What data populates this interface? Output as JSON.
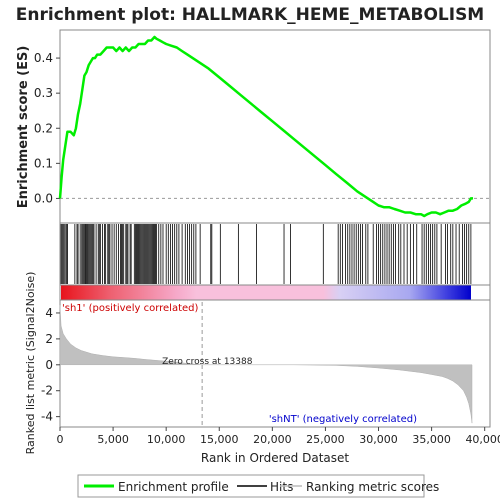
{
  "chart_data": {
    "type": "line",
    "title": "Enrichment plot: HALLMARK_HEME_METABOLISM",
    "top_panel": {
      "ylabel": "Enrichment score (ES)",
      "ylim": [
        -0.07,
        0.48
      ],
      "yticks": [
        "0.0",
        "0.1",
        "0.2",
        "0.3",
        "0.4"
      ],
      "ytick_values": [
        0.0,
        0.1,
        0.2,
        0.3,
        0.4
      ],
      "series": [
        {
          "name": "Enrichment profile",
          "color": "#00ee00",
          "x": [
            0,
            150,
            300,
            500,
            700,
            1000,
            1300,
            1500,
            1700,
            1900,
            2100,
            2300,
            2500,
            2700,
            2900,
            3100,
            3300,
            3500,
            3800,
            4100,
            4400,
            4700,
            5000,
            5300,
            5600,
            5900,
            6200,
            6500,
            6800,
            7100,
            7400,
            7700,
            8000,
            8300,
            8600,
            8900,
            9100,
            9400,
            9700,
            10000,
            10500,
            11000,
            11500,
            12000,
            12500,
            13000,
            14000,
            15000,
            16000,
            17000,
            18000,
            19000,
            20000,
            21000,
            22000,
            23000,
            24000,
            25000,
            26000,
            27000,
            28000,
            29000,
            29500,
            30000,
            30500,
            31000,
            31500,
            32000,
            32500,
            33000,
            33500,
            34000,
            34300,
            34600,
            35000,
            35400,
            35800,
            36200,
            36600,
            37000,
            37400,
            37800,
            38200,
            38500,
            38700,
            38900
          ],
          "y": [
            0.0,
            0.06,
            0.11,
            0.15,
            0.19,
            0.19,
            0.18,
            0.2,
            0.24,
            0.27,
            0.31,
            0.35,
            0.36,
            0.38,
            0.39,
            0.4,
            0.4,
            0.41,
            0.41,
            0.42,
            0.43,
            0.43,
            0.43,
            0.42,
            0.43,
            0.42,
            0.43,
            0.42,
            0.43,
            0.43,
            0.44,
            0.44,
            0.44,
            0.45,
            0.45,
            0.46,
            0.455,
            0.45,
            0.445,
            0.44,
            0.435,
            0.43,
            0.42,
            0.41,
            0.4,
            0.39,
            0.37,
            0.345,
            0.32,
            0.295,
            0.27,
            0.245,
            0.22,
            0.195,
            0.17,
            0.145,
            0.12,
            0.095,
            0.07,
            0.045,
            0.02,
            0.0,
            -0.01,
            -0.02,
            -0.025,
            -0.025,
            -0.03,
            -0.035,
            -0.04,
            -0.04,
            -0.045,
            -0.045,
            -0.05,
            -0.045,
            -0.04,
            -0.04,
            -0.045,
            -0.04,
            -0.035,
            -0.035,
            -0.03,
            -0.02,
            -0.015,
            -0.01,
            0.0,
            0.0
          ]
        }
      ]
    },
    "hits_panel": {
      "legend_name": "Hits"
    },
    "bottom_panel": {
      "ylabel": "Ranked list metric (Signal2Noise)",
      "ylim": [
        -4.8,
        5.0
      ],
      "yticks": [
        "-4",
        "-2",
        "0",
        "2",
        "4"
      ],
      "ytick_values": [
        -4,
        -2,
        0,
        2,
        4
      ],
      "metric_x": [
        0,
        100,
        300,
        600,
        1000,
        1500,
        2000,
        3000,
        4000,
        5000,
        6000,
        7000,
        8000,
        9000,
        10000,
        11000,
        12000,
        13388,
        15000,
        18000,
        22000,
        26000,
        28000,
        30000,
        32000,
        34000,
        35000,
        36000,
        36500,
        37000,
        37500,
        38000,
        38300,
        38500,
        38700,
        38800
      ],
      "metric_y": [
        4.6,
        3.0,
        2.4,
        2.0,
        1.6,
        1.3,
        1.1,
        0.85,
        0.72,
        0.62,
        0.56,
        0.5,
        0.42,
        0.35,
        0.28,
        0.2,
        0.1,
        0.0,
        0.0,
        0.0,
        0.0,
        -0.05,
        -0.12,
        -0.25,
        -0.4,
        -0.6,
        -0.75,
        -0.9,
        -1.05,
        -1.25,
        -1.55,
        -2.0,
        -2.5,
        -3.0,
        -3.8,
        -4.5
      ],
      "zero_cross_label": "Zero cross at 13388",
      "zero_cross_x": 13388,
      "pos_label": "'sh1' (positively correlated)",
      "neg_label": "'shNT' (negatively correlated)",
      "pos_color": "#cc0000",
      "neg_color": "#0000cc"
    },
    "xlabel": "Rank in Ordered Dataset",
    "xlim": [
      0,
      40500
    ],
    "xticks": [
      "0",
      "5,000",
      "10,000",
      "15,000",
      "20,000",
      "25,000",
      "30,000",
      "35,000",
      "40,000"
    ],
    "xtick_values": [
      0,
      5000,
      10000,
      15000,
      20000,
      25000,
      30000,
      35000,
      40000
    ],
    "legend": {
      "placement": "bottom",
      "entries": [
        {
          "label": "Enrichment profile",
          "color": "#00ee00"
        },
        {
          "label": "Hits",
          "color": "#000000"
        },
        {
          "label": "Ranking metric scores",
          "color": "#bbbbbb"
        }
      ]
    },
    "hits": [
      100,
      200,
      300,
      400,
      550,
      650,
      700,
      1400,
      1600,
      1700,
      1900,
      2050,
      2150,
      2250,
      2350,
      2400,
      2500,
      2600,
      2700,
      2800,
      2900,
      3000,
      3100,
      3200,
      3400,
      3600,
      3700,
      3800,
      4000,
      4200,
      4300,
      4500,
      4600,
      4700,
      4900,
      5100,
      5300,
      5500,
      5700,
      5800,
      5900,
      6000,
      6200,
      6300,
      6400,
      6600,
      6700,
      7000,
      7100,
      7200,
      7300,
      7400,
      7500,
      7600,
      7700,
      7800,
      7900,
      8000,
      8100,
      8200,
      8300,
      8400,
      8500,
      8600,
      8700,
      8800,
      8900,
      9000,
      9100,
      9300,
      9500,
      9700,
      10000,
      10200,
      10400,
      10600,
      10800,
      11000,
      11200,
      11500,
      11800,
      12000,
      12200,
      12400,
      12600,
      12800,
      13200,
      14200,
      14300,
      15100,
      16800,
      18500,
      21100,
      21700,
      24800,
      26200,
      26400,
      26600,
      26900,
      27100,
      27300,
      27500,
      27700,
      27900,
      28100,
      28300,
      28500,
      28800,
      29000,
      29500,
      29800,
      30000,
      30200,
      30400,
      30600,
      30800,
      31000,
      31200,
      31400,
      31600,
      31900,
      32100,
      32400,
      32700,
      33000,
      33300,
      33600,
      34100,
      34300,
      34500,
      34700,
      34900,
      35100,
      35300,
      35500,
      35900,
      36300,
      36500,
      36800,
      37000,
      37300,
      37600,
      37900,
      38100,
      38300,
      38500,
      38700
    ]
  }
}
